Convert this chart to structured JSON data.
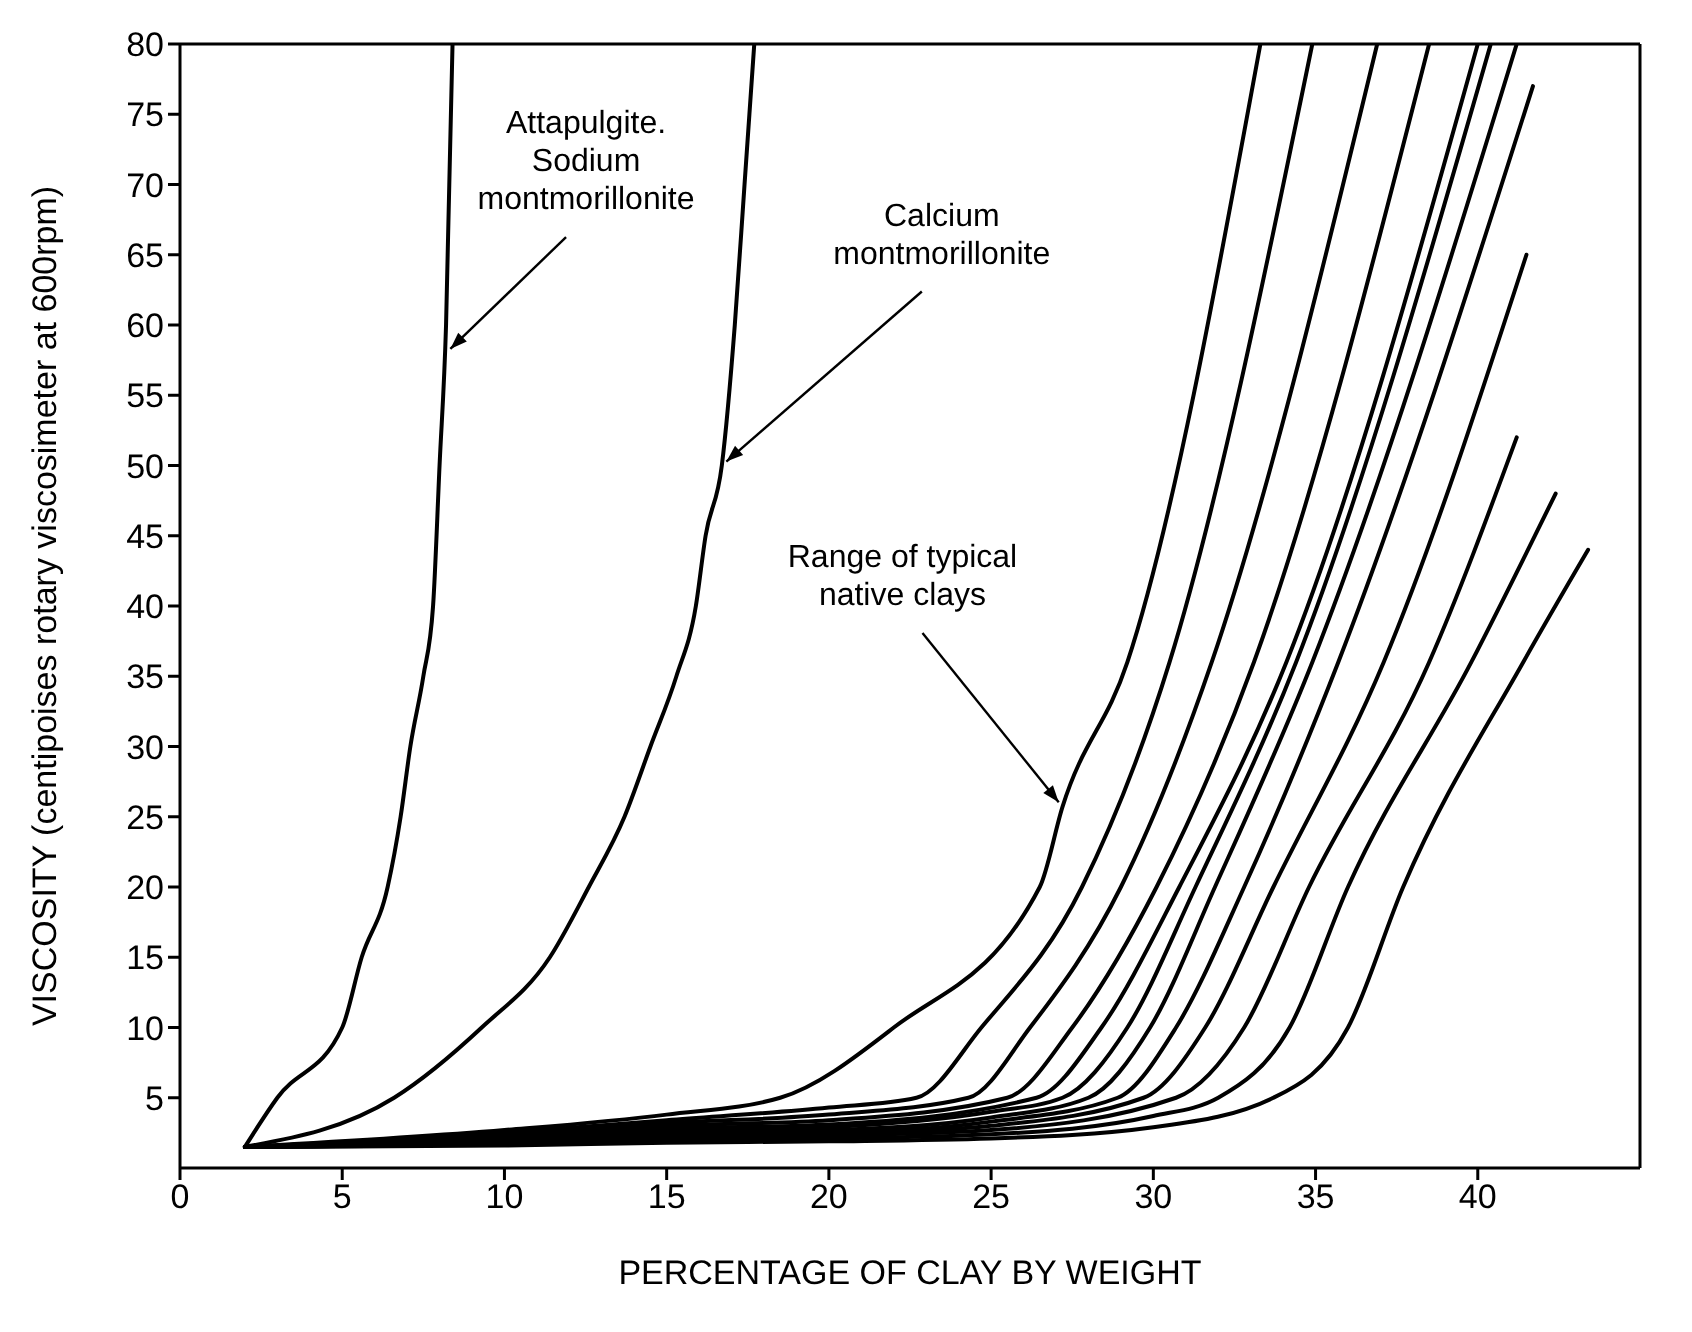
{
  "chart_data": {
    "type": "line",
    "xlabel": "PERCENTAGE OF CLAY BY WEIGHT",
    "ylabel": "VISCOSITY (centipoises rotary viscosimeter at 600rpm)",
    "xlim": [
      0,
      45
    ],
    "ylim": [
      0,
      80
    ],
    "xticks": [
      0,
      5,
      10,
      15,
      20,
      25,
      30,
      35,
      40
    ],
    "yticks": [
      5,
      10,
      15,
      20,
      25,
      30,
      35,
      40,
      45,
      50,
      55,
      60,
      65,
      70,
      75,
      80
    ],
    "grid": false,
    "marker": "none",
    "line_style": "solid",
    "series": [
      {
        "color": "#000000",
        "x": [
          2,
          3,
          5,
          5.6,
          6.4,
          6.8,
          7.1,
          7.5,
          7.8,
          8.0,
          8.2,
          8.4
        ],
        "values": [
          1.5,
          5,
          10,
          15,
          20,
          25,
          30,
          35,
          40,
          50,
          60,
          80
        ]
      },
      {
        "color": "#000000",
        "x": [
          2,
          6.6,
          9.3,
          11.4,
          12.6,
          13.7,
          14.5,
          15.3,
          15.9,
          16.2,
          16.7,
          17.1,
          17.4,
          17.7
        ],
        "values": [
          1.5,
          5,
          10,
          15,
          20,
          25,
          30,
          35,
          40,
          45,
          50,
          60,
          70,
          80
        ]
      },
      {
        "color": "#000000",
        "x": [
          2,
          10,
          15,
          18.5,
          22,
          26.5,
          27.2,
          29.2,
          33.3
        ],
        "values": [
          1.5,
          2.7,
          3.8,
          5,
          10,
          20,
          25.7,
          36,
          80
        ]
      },
      {
        "color": "#000000",
        "x": [
          2,
          10,
          15,
          20,
          22.7,
          24.7,
          27.8,
          30.5,
          34.9
        ],
        "values": [
          1.5,
          2.5,
          3.4,
          4.3,
          5,
          10,
          20,
          36,
          80
        ]
      },
      {
        "color": "#000000",
        "x": [
          2,
          10,
          15,
          20,
          24.3,
          26.2,
          29.0,
          31.8,
          36.9
        ],
        "values": [
          1.5,
          2.4,
          3.2,
          3.8,
          5,
          10,
          20,
          36,
          80
        ]
      },
      {
        "color": "#000000",
        "x": [
          2,
          10,
          15,
          20,
          25.5,
          27.5,
          30.1,
          33.1,
          38.5
        ],
        "values": [
          1.5,
          2.3,
          3.0,
          3.4,
          5,
          10,
          20,
          36,
          80
        ]
      },
      {
        "color": "#000000",
        "x": [
          2,
          10,
          15,
          20,
          26.4,
          28.4,
          30.8,
          34.1,
          40.0
        ],
        "values": [
          1.5,
          2.2,
          2.8,
          3.1,
          5,
          10,
          20,
          36,
          80
        ]
      },
      {
        "color": "#000000",
        "x": [
          2,
          10,
          15,
          20,
          25,
          27.2,
          29.2,
          31.3,
          34.4,
          40.4
        ],
        "values": [
          1.5,
          2.1,
          2.6,
          2.9,
          4.0,
          5,
          10,
          20,
          36,
          80
        ]
      },
      {
        "color": "#000000",
        "x": [
          2,
          10,
          15,
          20,
          25,
          28.0,
          29.9,
          31.9,
          34.9,
          41.2
        ],
        "values": [
          1.5,
          2.0,
          2.5,
          2.7,
          3.6,
          5,
          10,
          20,
          36,
          80
        ]
      },
      {
        "color": "#000000",
        "x": [
          2,
          10,
          15,
          20,
          25,
          28.9,
          30.7,
          32.8,
          35.7,
          41.7
        ],
        "values": [
          1.5,
          1.9,
          2.3,
          2.5,
          3.3,
          5,
          10,
          20,
          36,
          77
        ]
      },
      {
        "color": "#000000",
        "x": [
          2,
          10,
          15,
          20,
          25,
          29.7,
          31.6,
          33.7,
          37.1,
          41.5
        ],
        "values": [
          1.5,
          1.8,
          2.2,
          2.4,
          3.0,
          5,
          10,
          20,
          36,
          65
        ]
      },
      {
        "color": "#000000",
        "x": [
          2,
          10,
          15,
          20,
          25,
          30.7,
          32.8,
          34.8,
          38.5,
          41.2
        ],
        "values": [
          1.5,
          1.7,
          2.1,
          2.3,
          2.7,
          5,
          10,
          20,
          36,
          52
        ]
      },
      {
        "color": "#000000",
        "x": [
          2,
          10,
          15,
          20,
          25,
          30,
          32.0,
          34.2,
          36.0,
          39.8,
          42.4
        ],
        "values": [
          1.5,
          1.7,
          2.0,
          2.1,
          2.4,
          3.7,
          5,
          10,
          20,
          36,
          48
        ]
      },
      {
        "color": "#000000",
        "x": [
          2,
          10,
          15,
          20,
          25,
          30,
          33.7,
          36.0,
          37.7,
          41.4,
          43.4
        ],
        "values": [
          1.5,
          1.6,
          1.8,
          1.9,
          2.1,
          2.9,
          5,
          10,
          20,
          36,
          44
        ]
      }
    ],
    "annotations": [
      {
        "text": "Attapulgite.\nSodium\nmontmorillonite",
        "x": 8.2,
        "y": 58
      },
      {
        "text": "Calcium\nmontmorillonite",
        "x": 16.7,
        "y": 50
      },
      {
        "text": "Range of typical\nnative clays",
        "x": 27.2,
        "y": 25.7
      }
    ]
  }
}
